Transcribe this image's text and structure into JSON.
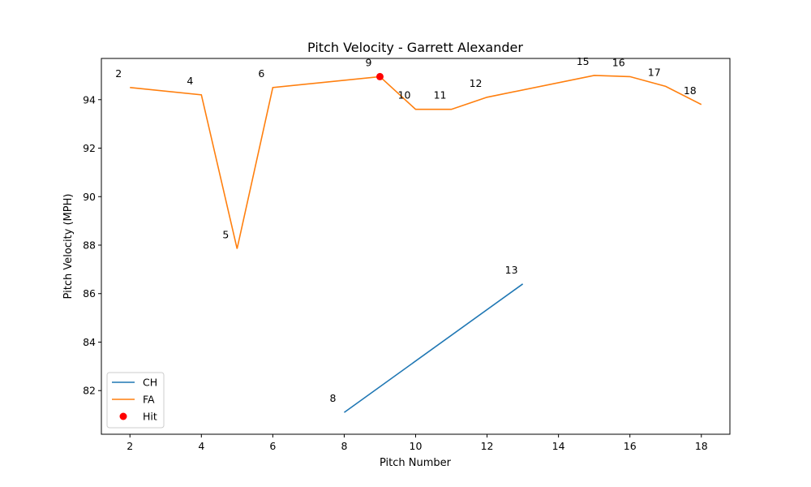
{
  "chart_data": {
    "type": "line",
    "title": "Pitch Velocity - Garrett Alexander",
    "xlabel": "Pitch Number",
    "ylabel": "Pitch Velocity (MPH)",
    "xlim": [
      1.2,
      18.8
    ],
    "ylim": [
      80.2,
      95.7
    ],
    "xticks": [
      2,
      4,
      6,
      8,
      10,
      12,
      14,
      16,
      18
    ],
    "yticks": [
      82,
      84,
      86,
      88,
      90,
      92,
      94
    ],
    "grid": false,
    "legend_position": "lower-left",
    "series": [
      {
        "name": "CH",
        "kind": "line",
        "color": "#1f77b4",
        "points": [
          {
            "x": 8,
            "y": 81.1,
            "label": "8"
          },
          {
            "x": 13,
            "y": 86.4,
            "label": "13"
          }
        ]
      },
      {
        "name": "FA",
        "kind": "line",
        "color": "#ff7f0e",
        "points": [
          {
            "x": 2,
            "y": 94.5,
            "label": "2"
          },
          {
            "x": 4,
            "y": 94.2,
            "label": "4"
          },
          {
            "x": 5,
            "y": 87.85,
            "label": "5"
          },
          {
            "x": 6,
            "y": 94.5,
            "label": "6"
          },
          {
            "x": 9,
            "y": 94.95,
            "label": "9"
          },
          {
            "x": 10,
            "y": 93.6,
            "label": "10"
          },
          {
            "x": 11,
            "y": 93.6,
            "label": "11"
          },
          {
            "x": 12,
            "y": 94.1,
            "label": "12"
          },
          {
            "x": 15,
            "y": 95.0,
            "label": "15"
          },
          {
            "x": 16,
            "y": 94.95,
            "label": "16"
          },
          {
            "x": 17,
            "y": 94.55,
            "label": "17"
          },
          {
            "x": 18,
            "y": 93.8,
            "label": "18"
          }
        ]
      },
      {
        "name": "Hit",
        "kind": "scatter",
        "color": "#ff0000",
        "points": [
          {
            "x": 9,
            "y": 94.95
          }
        ]
      }
    ]
  }
}
